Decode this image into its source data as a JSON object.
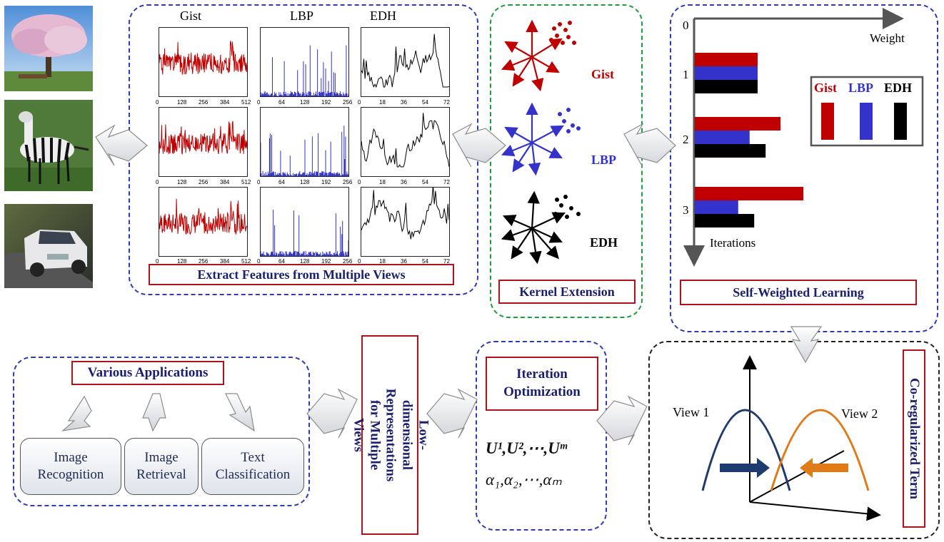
{
  "feature_extraction": {
    "col_titles": [
      "Gist",
      "LBP",
      "EDH"
    ],
    "gist_ticks": [
      "0",
      "128",
      "256",
      "384",
      "512"
    ],
    "lbp_ticks": [
      "0",
      "64",
      "128",
      "192",
      "256"
    ],
    "edh_ticks": [
      "0",
      "18",
      "36",
      "54",
      "72"
    ],
    "caption": "Extract Features from Multiple Views"
  },
  "kernel": {
    "labels": [
      "Gist",
      "LBP",
      "EDH"
    ],
    "caption": "Kernel Extension"
  },
  "self_weighted": {
    "axis_zero": "0",
    "x_label": "Weight",
    "y_label": "Iterations",
    "iterations": [
      "1",
      "2",
      "3"
    ],
    "legend": [
      "Gist",
      "LBP",
      "EDH"
    ],
    "caption": "Self-Weighted Learning",
    "weights": {
      "iteration_1": {
        "Gist": 0.55,
        "LBP": 0.55,
        "EDH": 0.55
      },
      "iteration_2": {
        "Gist": 0.75,
        "LBP": 0.48,
        "EDH": 0.62
      },
      "iteration_3": {
        "Gist": 0.95,
        "LBP": 0.38,
        "EDH": 0.52
      }
    }
  },
  "coregularized": {
    "view1": "View 1",
    "view2": "View 2",
    "caption": "Co-regularized Term"
  },
  "iteration": {
    "caption": "Iteration Optimization",
    "formula_u": "U¹,U²,⋯,Uᵐ",
    "formula_alpha": "α₁,α₂,⋯,αₘ"
  },
  "lowdim": {
    "caption": "Low-dimensional Representations for Multiple Views"
  },
  "applications": {
    "caption": "Various Applications",
    "items": [
      "Image Recognition",
      "Image Retrieval",
      "Text Classification"
    ]
  },
  "colors": {
    "gist": "#c00000",
    "lbp": "#3333cc",
    "edh": "#000000",
    "view1": "#1f3a6e",
    "view2": "#e07b1a"
  }
}
